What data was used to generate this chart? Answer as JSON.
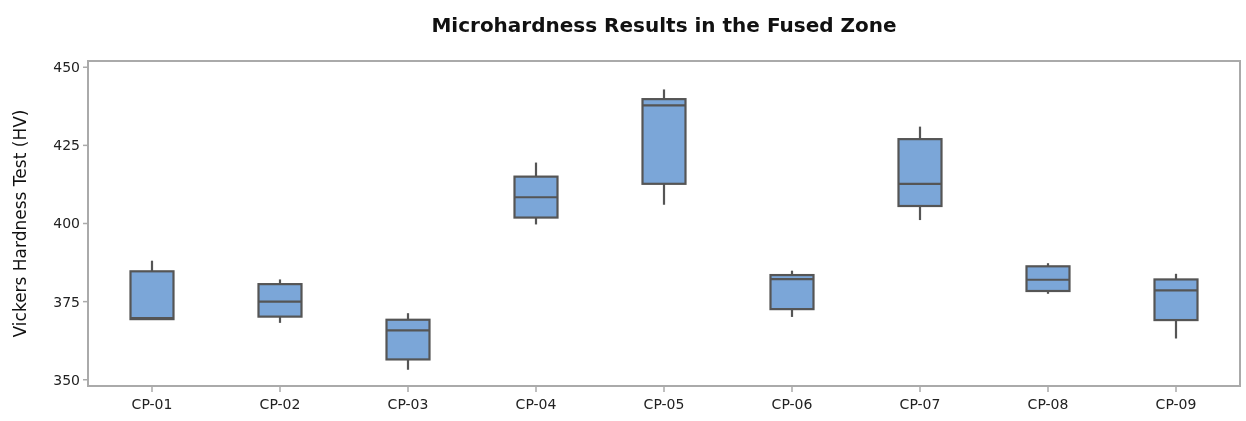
{
  "chart_data": {
    "type": "box",
    "title": "Microhardness Results in the Fused Zone",
    "ylabel": "Vickers Hardness Test (HV)",
    "categories": [
      "CP-01",
      "CP-02",
      "CP-03",
      "CP-04",
      "CP-05",
      "CP-06",
      "CP-07",
      "CP-08",
      "CP-09"
    ],
    "series": [
      {
        "color": "#7ba6d8",
        "boxes": [
          {
            "low": 369.4,
            "q1": 369.4,
            "median": 369.7,
            "q3": 384.7,
            "high": 388.1
          },
          {
            "low": 368.2,
            "q1": 370.2,
            "median": 375,
            "q3": 380.6,
            "high": 382.1
          },
          {
            "low": 353.2,
            "q1": 356.5,
            "median": 365.8,
            "q3": 369.2,
            "high": 371.3
          },
          {
            "low": 399.7,
            "q1": 401.9,
            "median": 408.4,
            "q3": 415,
            "high": 419.5
          },
          {
            "low": 406,
            "q1": 412.7,
            "median": 437.8,
            "q3": 439.8,
            "high": 442.9
          },
          {
            "low": 370.1,
            "q1": 372.6,
            "median": 382.2,
            "q3": 383.5,
            "high": 384.9
          },
          {
            "low": 401.1,
            "q1": 405.6,
            "median": 412.7,
            "q3": 427,
            "high": 431
          },
          {
            "low": 377.5,
            "q1": 378.4,
            "median": 382,
            "q3": 386.3,
            "high": 387.3
          },
          {
            "low": 363.2,
            "q1": 369.1,
            "median": 378.6,
            "q3": 382.1,
            "high": 383.9
          }
        ]
      }
    ],
    "ylim": [
      348,
      452
    ],
    "yticks": [
      350,
      375,
      400,
      425,
      450
    ],
    "grid": false
  }
}
